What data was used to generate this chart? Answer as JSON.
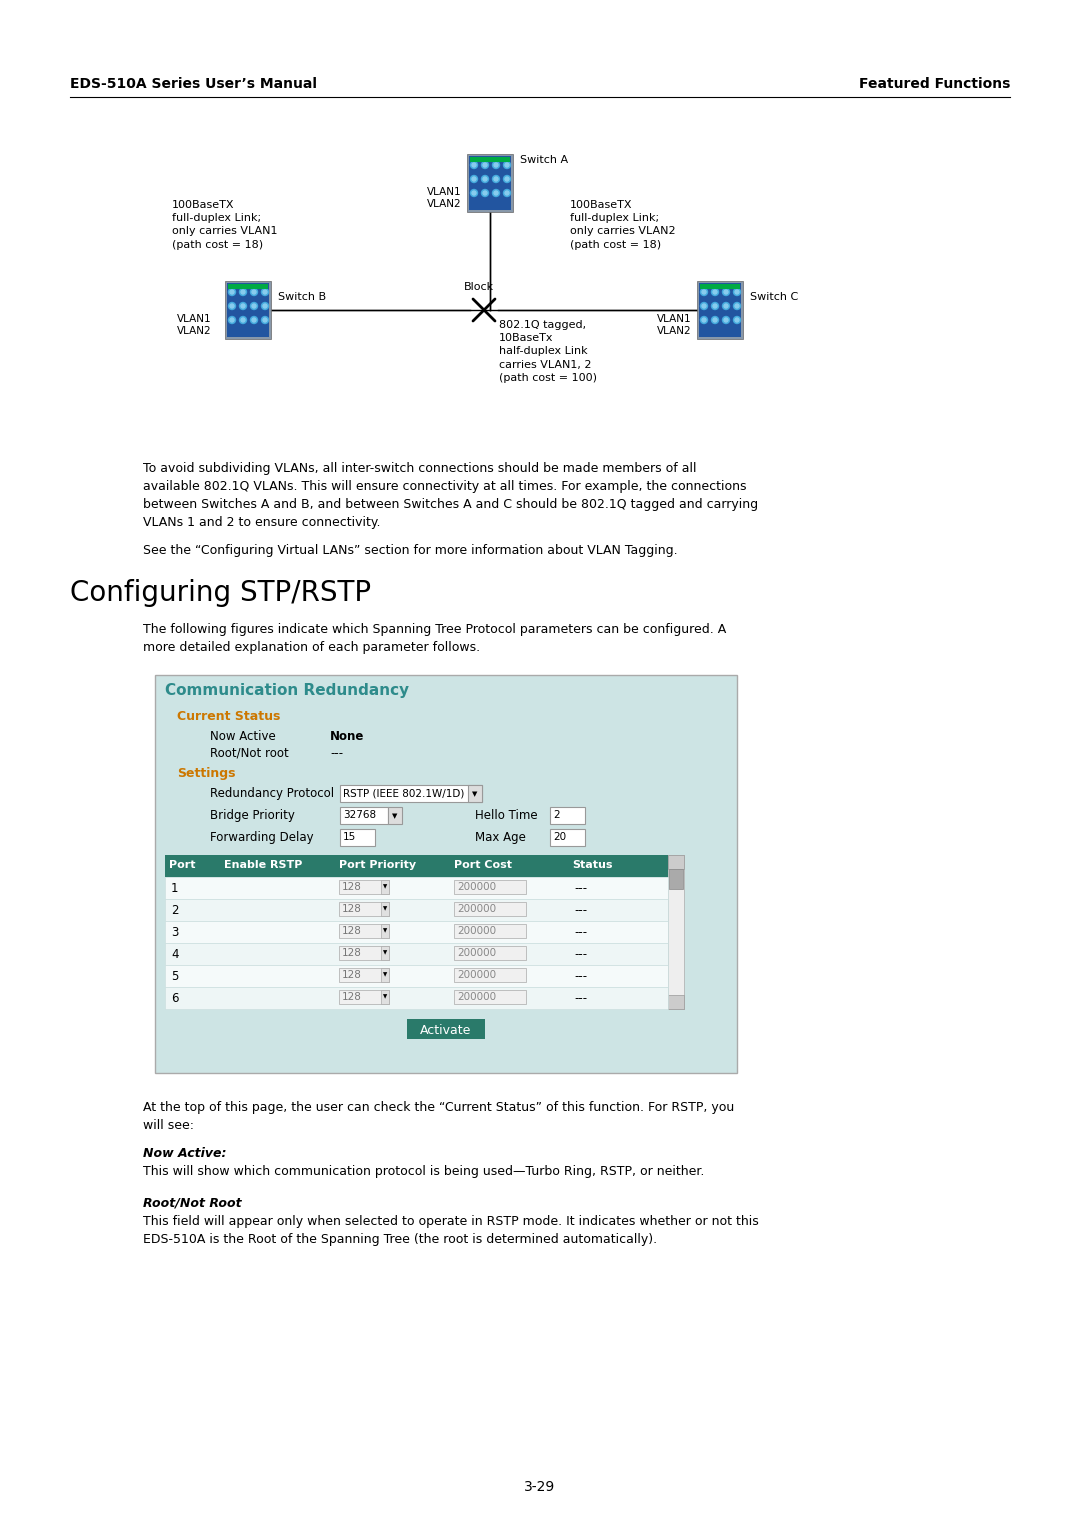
{
  "page_bg": "#ffffff",
  "header_left": "EDS-510A Series User’s Manual",
  "header_right": "Featured Functions",
  "para1": "To avoid subdividing VLANs, all inter-switch connections should be made members of all\navailable 802.1Q VLANs. This will ensure connectivity at all times. For example, the connections\nbetween Switches A and B, and between Switches A and C should be 802.1Q tagged and carrying\nVLANs 1 and 2 to ensure connectivity.",
  "para2": "See the “Configuring Virtual LANs” section for more information about VLAN Tagging.",
  "section_title": "Configuring STP/RSTP",
  "para3": "The following figures indicate which Spanning Tree Protocol parameters can be configured. A\nmore detailed explanation of each parameter follows.",
  "comm_title": "Communication Redundancy",
  "comm_title_color": "#2e8b8b",
  "comm_bg": "#cde4e4",
  "current_status_color": "#cc7700",
  "settings_color": "#cc7700",
  "table_header_color": "#2a7a6a",
  "now_active_value": "None",
  "root_not_root_value": "---",
  "redundancy_protocol_value": "RSTP (IEEE 802.1W/1D)",
  "bridge_priority_value": "32768",
  "hello_time_value": "2",
  "forwarding_delay_value": "15",
  "max_age_value": "20",
  "bottom_para1": "At the top of this page, the user can check the “Current Status” of this function. For RSTP, you\nwill see:",
  "now_active_desc": "This will show which communication protocol is being used—Turbo Ring, RSTP, or neither.",
  "root_not_root_desc": "This field will appear only when selected to operate in RSTP mode. It indicates whether or not this\nEDS-510A is the Root of the Spanning Tree (the root is determined automatically).",
  "page_number": "3-29"
}
